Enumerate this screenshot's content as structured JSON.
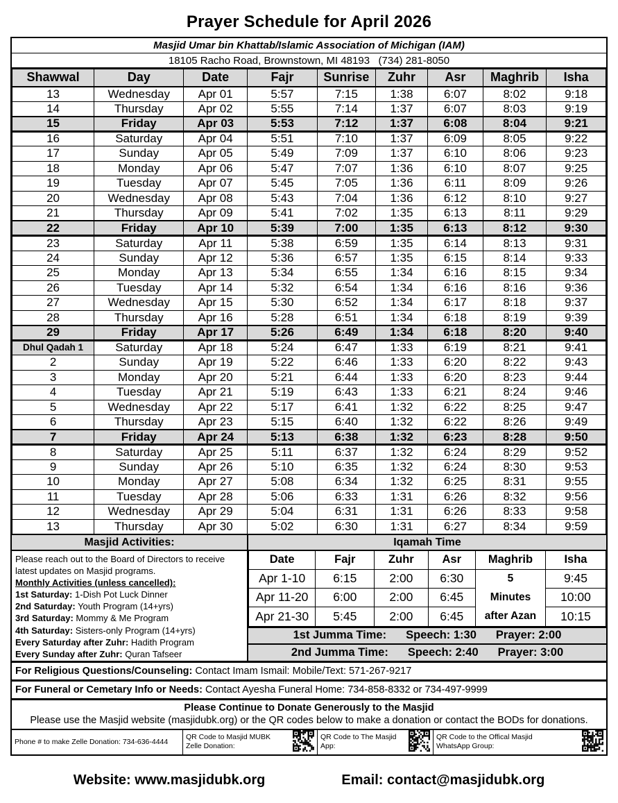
{
  "page": {
    "title": "Prayer Schedule for April 2026",
    "masjid_name": "Masjid Umar bin Khattab/Islamic Association of Michigan (IAM)",
    "address": "18105 Racho Road, Brownstown, MI 48193   (734) 281-8050"
  },
  "colors": {
    "header_bg": "#d9d9d9",
    "border": "#000000",
    "text": "#000000"
  },
  "main_table": {
    "columns": [
      "Shawwal",
      "Day",
      "Date",
      "Fajr",
      "Sunrise",
      "Zuhr",
      "Asr",
      "Maghrib",
      "Isha"
    ],
    "col_widths": [
      "13.8%",
      "15.1%",
      "10.7%",
      "11.8%",
      "9.8%",
      "8.8%",
      "9.3%",
      "10.7%",
      "10.0%"
    ],
    "rows": [
      {
        "hijri": "13",
        "day": "Wednesday",
        "date": "Apr 01",
        "fajr": "5:57",
        "sunrise": "7:15",
        "zuhr": "1:38",
        "asr": "6:07",
        "maghrib": "8:02",
        "isha": "9:18",
        "friday": false,
        "hijri_highlight": false
      },
      {
        "hijri": "14",
        "day": "Thursday",
        "date": "Apr 02",
        "fajr": "5:55",
        "sunrise": "7:14",
        "zuhr": "1:37",
        "asr": "6:07",
        "maghrib": "8:03",
        "isha": "9:19",
        "friday": false,
        "hijri_highlight": false
      },
      {
        "hijri": "15",
        "day": "Friday",
        "date": "Apr 03",
        "fajr": "5:53",
        "sunrise": "7:12",
        "zuhr": "1:37",
        "asr": "6:08",
        "maghrib": "8:04",
        "isha": "9:21",
        "friday": true,
        "hijri_highlight": false
      },
      {
        "hijri": "16",
        "day": "Saturday",
        "date": "Apr 04",
        "fajr": "5:51",
        "sunrise": "7:10",
        "zuhr": "1:37",
        "asr": "6:09",
        "maghrib": "8:05",
        "isha": "9:22",
        "friday": false,
        "hijri_highlight": false
      },
      {
        "hijri": "17",
        "day": "Sunday",
        "date": "Apr 05",
        "fajr": "5:49",
        "sunrise": "7:09",
        "zuhr": "1:37",
        "asr": "6:10",
        "maghrib": "8:06",
        "isha": "9:23",
        "friday": false,
        "hijri_highlight": false
      },
      {
        "hijri": "18",
        "day": "Monday",
        "date": "Apr 06",
        "fajr": "5:47",
        "sunrise": "7:07",
        "zuhr": "1:36",
        "asr": "6:10",
        "maghrib": "8:07",
        "isha": "9:25",
        "friday": false,
        "hijri_highlight": false
      },
      {
        "hijri": "19",
        "day": "Tuesday",
        "date": "Apr 07",
        "fajr": "5:45",
        "sunrise": "7:05",
        "zuhr": "1:36",
        "asr": "6:11",
        "maghrib": "8:09",
        "isha": "9:26",
        "friday": false,
        "hijri_highlight": false
      },
      {
        "hijri": "20",
        "day": "Wednesday",
        "date": "Apr 08",
        "fajr": "5:43",
        "sunrise": "7:04",
        "zuhr": "1:36",
        "asr": "6:12",
        "maghrib": "8:10",
        "isha": "9:27",
        "friday": false,
        "hijri_highlight": false
      },
      {
        "hijri": "21",
        "day": "Thursday",
        "date": "Apr 09",
        "fajr": "5:41",
        "sunrise": "7:02",
        "zuhr": "1:35",
        "asr": "6:13",
        "maghrib": "8:11",
        "isha": "9:29",
        "friday": false,
        "hijri_highlight": false
      },
      {
        "hijri": "22",
        "day": "Friday",
        "date": "Apr 10",
        "fajr": "5:39",
        "sunrise": "7:00",
        "zuhr": "1:35",
        "asr": "6:13",
        "maghrib": "8:12",
        "isha": "9:30",
        "friday": true,
        "hijri_highlight": false
      },
      {
        "hijri": "23",
        "day": "Saturday",
        "date": "Apr 11",
        "fajr": "5:38",
        "sunrise": "6:59",
        "zuhr": "1:35",
        "asr": "6:14",
        "maghrib": "8:13",
        "isha": "9:31",
        "friday": false,
        "hijri_highlight": false
      },
      {
        "hijri": "24",
        "day": "Sunday",
        "date": "Apr 12",
        "fajr": "5:36",
        "sunrise": "6:57",
        "zuhr": "1:35",
        "asr": "6:15",
        "maghrib": "8:14",
        "isha": "9:33",
        "friday": false,
        "hijri_highlight": false
      },
      {
        "hijri": "25",
        "day": "Monday",
        "date": "Apr 13",
        "fajr": "5:34",
        "sunrise": "6:55",
        "zuhr": "1:34",
        "asr": "6:16",
        "maghrib": "8:15",
        "isha": "9:34",
        "friday": false,
        "hijri_highlight": false
      },
      {
        "hijri": "26",
        "day": "Tuesday",
        "date": "Apr 14",
        "fajr": "5:32",
        "sunrise": "6:54",
        "zuhr": "1:34",
        "asr": "6:16",
        "maghrib": "8:16",
        "isha": "9:36",
        "friday": false,
        "hijri_highlight": false
      },
      {
        "hijri": "27",
        "day": "Wednesday",
        "date": "Apr 15",
        "fajr": "5:30",
        "sunrise": "6:52",
        "zuhr": "1:34",
        "asr": "6:17",
        "maghrib": "8:18",
        "isha": "9:37",
        "friday": false,
        "hijri_highlight": false
      },
      {
        "hijri": "28",
        "day": "Thursday",
        "date": "Apr 16",
        "fajr": "5:28",
        "sunrise": "6:51",
        "zuhr": "1:34",
        "asr": "6:18",
        "maghrib": "8:19",
        "isha": "9:39",
        "friday": false,
        "hijri_highlight": false
      },
      {
        "hijri": "29",
        "day": "Friday",
        "date": "Apr 17",
        "fajr": "5:26",
        "sunrise": "6:49",
        "zuhr": "1:34",
        "asr": "6:18",
        "maghrib": "8:20",
        "isha": "9:40",
        "friday": true,
        "hijri_highlight": false
      },
      {
        "hijri": "Dhul Qadah 1",
        "day": "Saturday",
        "date": "Apr 18",
        "fajr": "5:24",
        "sunrise": "6:47",
        "zuhr": "1:33",
        "asr": "6:19",
        "maghrib": "8:21",
        "isha": "9:41",
        "friday": false,
        "hijri_highlight": true
      },
      {
        "hijri": "2",
        "day": "Sunday",
        "date": "Apr 19",
        "fajr": "5:22",
        "sunrise": "6:46",
        "zuhr": "1:33",
        "asr": "6:20",
        "maghrib": "8:22",
        "isha": "9:43",
        "friday": false,
        "hijri_highlight": false
      },
      {
        "hijri": "3",
        "day": "Monday",
        "date": "Apr 20",
        "fajr": "5:21",
        "sunrise": "6:44",
        "zuhr": "1:33",
        "asr": "6:20",
        "maghrib": "8:23",
        "isha": "9:44",
        "friday": false,
        "hijri_highlight": false
      },
      {
        "hijri": "4",
        "day": "Tuesday",
        "date": "Apr 21",
        "fajr": "5:19",
        "sunrise": "6:43",
        "zuhr": "1:33",
        "asr": "6:21",
        "maghrib": "8:24",
        "isha": "9:46",
        "friday": false,
        "hijri_highlight": false
      },
      {
        "hijri": "5",
        "day": "Wednesday",
        "date": "Apr 22",
        "fajr": "5:17",
        "sunrise": "6:41",
        "zuhr": "1:32",
        "asr": "6:22",
        "maghrib": "8:25",
        "isha": "9:47",
        "friday": false,
        "hijri_highlight": false
      },
      {
        "hijri": "6",
        "day": "Thursday",
        "date": "Apr 23",
        "fajr": "5:15",
        "sunrise": "6:40",
        "zuhr": "1:32",
        "asr": "6:22",
        "maghrib": "8:26",
        "isha": "9:49",
        "friday": false,
        "hijri_highlight": false
      },
      {
        "hijri": "7",
        "day": "Friday",
        "date": "Apr 24",
        "fajr": "5:13",
        "sunrise": "6:38",
        "zuhr": "1:32",
        "asr": "6:23",
        "maghrib": "8:28",
        "isha": "9:50",
        "friday": true,
        "hijri_highlight": false
      },
      {
        "hijri": "8",
        "day": "Saturday",
        "date": "Apr 25",
        "fajr": "5:11",
        "sunrise": "6:37",
        "zuhr": "1:32",
        "asr": "6:24",
        "maghrib": "8:29",
        "isha": "9:52",
        "friday": false,
        "hijri_highlight": false
      },
      {
        "hijri": "9",
        "day": "Sunday",
        "date": "Apr 26",
        "fajr": "5:10",
        "sunrise": "6:35",
        "zuhr": "1:32",
        "asr": "6:24",
        "maghrib": "8:30",
        "isha": "9:53",
        "friday": false,
        "hijri_highlight": false
      },
      {
        "hijri": "10",
        "day": "Monday",
        "date": "Apr 27",
        "fajr": "5:08",
        "sunrise": "6:34",
        "zuhr": "1:32",
        "asr": "6:25",
        "maghrib": "8:31",
        "isha": "9:55",
        "friday": false,
        "hijri_highlight": false
      },
      {
        "hijri": "11",
        "day": "Tuesday",
        "date": "Apr 28",
        "fajr": "5:06",
        "sunrise": "6:33",
        "zuhr": "1:31",
        "asr": "6:26",
        "maghrib": "8:32",
        "isha": "9:56",
        "friday": false,
        "hijri_highlight": false
      },
      {
        "hijri": "12",
        "day": "Wednesday",
        "date": "Apr 29",
        "fajr": "5:04",
        "sunrise": "6:31",
        "zuhr": "1:31",
        "asr": "6:26",
        "maghrib": "8:33",
        "isha": "9:58",
        "friday": false,
        "hijri_highlight": false
      },
      {
        "hijri": "13",
        "day": "Thursday",
        "date": "Apr 30",
        "fajr": "5:02",
        "sunrise": "6:30",
        "zuhr": "1:31",
        "asr": "6:27",
        "maghrib": "8:34",
        "isha": "9:59",
        "friday": false,
        "hijri_highlight": false
      }
    ]
  },
  "activities": {
    "title": "Masjid Activities:",
    "intro": "Please reach out to the Board of Directors to receive latest updates on Masjid programs.",
    "monthly_heading": "Monthly Activities (unless cancelled):",
    "items": [
      {
        "label": "1st Saturday:",
        "text": " 1-Dish Pot Luck Dinner"
      },
      {
        "label": "2nd Saturday:",
        "text": " Youth Program (14+yrs)"
      },
      {
        "label": "3rd Saturday:",
        "text": " Mommy & Me Program"
      },
      {
        "label": "4th Saturday:",
        "text": " Sisters-only Program (14+yrs)"
      },
      {
        "label": "Every Saturday after Zuhr:",
        "text": " Hadith Program"
      },
      {
        "label": "Every Sunday after Zuhr:",
        "text": " Quran Tafseer"
      }
    ]
  },
  "iqamah": {
    "title": "Iqamah Time",
    "columns": [
      "Date",
      "Fajr",
      "Zuhr",
      "Asr",
      "Maghrib",
      "Isha"
    ],
    "col_widths": [
      "18.7%",
      "16.5%",
      "15.0%",
      "13.3%",
      "19.6%",
      "16.9%"
    ],
    "maghrib_note": [
      "5",
      "Minutes",
      "after Azan"
    ],
    "rows": [
      {
        "date": "Apr 1-10",
        "fajr": "6:15",
        "zuhr": "2:00",
        "asr": "6:30",
        "isha": "9:45"
      },
      {
        "date": "Apr 11-20",
        "fajr": "6:00",
        "zuhr": "2:00",
        "asr": "6:45",
        "isha": "10:00"
      },
      {
        "date": "Apr 21-30",
        "fajr": "5:45",
        "zuhr": "2:00",
        "asr": "6:45",
        "isha": "10:15"
      }
    ]
  },
  "jumma": [
    {
      "label": "1st Jumma Time:",
      "speech": "Speech: 1:30",
      "prayer": "Prayer: 2:00"
    },
    {
      "label": "2nd Jumma Time:",
      "speech": "Speech: 2:40",
      "prayer": "Prayer: 3:00"
    }
  ],
  "info_rows": [
    {
      "label": "For Religious Questions/Counseling:",
      "text": " Contact Imam Ismail: Mobile/Text: 571-267-9217"
    },
    {
      "label": "For Funeral or Cemetary Info or Needs:",
      "text": " Contact Ayesha Funeral Home: 734-858-8332 or 734-497-9999"
    }
  ],
  "donate": {
    "title": "Please Continue to Donate Generously to the Masjid",
    "text": "Please use the Masjid website (masjidubk.org) or the QR codes below to make a donation or contact the BODs for donations."
  },
  "qr_row": {
    "phone": "Phone # to make Zelle Donation: 734-636-4444",
    "cells": [
      {
        "line1": "QR Code to Masjid MUBK",
        "line2": "Zelle Donation:"
      },
      {
        "line1": "QR Code to The Masjid",
        "line2": "App:"
      },
      {
        "line1": "QR Code to the Offical Masjid",
        "line2": "WhatsApp Group:"
      }
    ]
  },
  "footer": {
    "website": "Website: www.masjidubk.org",
    "email": "Email: contact@masjidubk.org"
  }
}
